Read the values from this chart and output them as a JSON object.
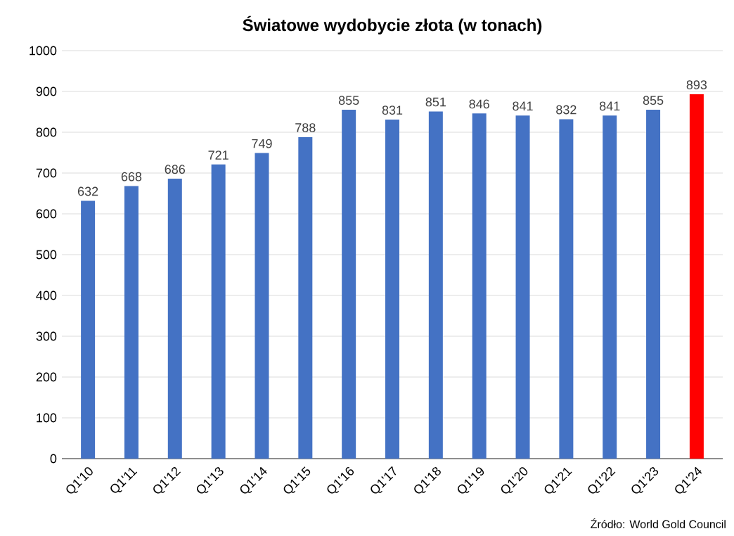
{
  "chart_data": {
    "type": "bar",
    "title": "Światowe wydobycie złota (w tonach)",
    "categories": [
      "Q1'10",
      "Q1'11",
      "Q1'12",
      "Q1'13",
      "Q1'14",
      "Q1'15",
      "Q1'16",
      "Q1'17",
      "Q1'18",
      "Q1'19",
      "Q1'20",
      "Q1'21",
      "Q1'22",
      "Q1'23",
      "Q1'24"
    ],
    "values": [
      632,
      668,
      686,
      721,
      749,
      788,
      855,
      831,
      851,
      846,
      841,
      832,
      841,
      855,
      893
    ],
    "colors": [
      "#4472c4",
      "#4472c4",
      "#4472c4",
      "#4472c4",
      "#4472c4",
      "#4472c4",
      "#4472c4",
      "#4472c4",
      "#4472c4",
      "#4472c4",
      "#4472c4",
      "#4472c4",
      "#4472c4",
      "#4472c4",
      "#ff0000"
    ],
    "ylim": [
      0,
      1000
    ],
    "yticks": [
      0,
      100,
      200,
      300,
      400,
      500,
      600,
      700,
      800,
      900,
      1000
    ],
    "grid": "y",
    "data_labels": true,
    "annotations": [
      "Źródło: World Gold Council"
    ]
  }
}
